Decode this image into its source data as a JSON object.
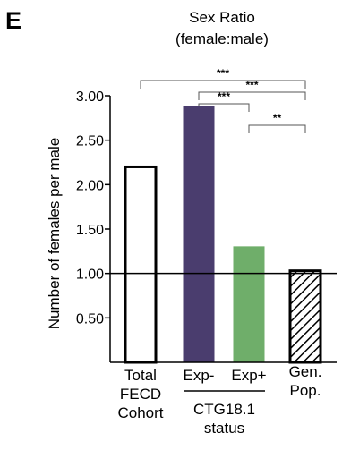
{
  "panel_label": "E",
  "chart_data": {
    "type": "bar",
    "title": "Sex Ratio",
    "subtitle": "(female:male)",
    "ylabel": "Number of females per male",
    "xlabel": "",
    "ylim": [
      0,
      3.0
    ],
    "yticks": [
      "0.50",
      "1.00",
      "1.50",
      "2.00",
      "2.50",
      "3.00"
    ],
    "ytick_values": [
      0.5,
      1.0,
      1.5,
      2.0,
      2.5,
      3.0
    ],
    "reference_line": 1.0,
    "categories": [
      {
        "lines": [
          "Total",
          "FECD",
          "Cohort"
        ]
      },
      {
        "lines": [
          "Exp-"
        ]
      },
      {
        "lines": [
          "Exp+"
        ]
      },
      {
        "lines": [
          "Gen.",
          "Pop."
        ]
      }
    ],
    "group_label": {
      "lines": [
        "CTG18.1",
        "status"
      ],
      "spans": [
        1,
        2
      ]
    },
    "values": [
      2.2,
      2.88,
      1.3,
      1.03
    ],
    "bar_styles": [
      {
        "fill": "#ffffff",
        "stroke": "#000000",
        "pattern": "none"
      },
      {
        "fill": "#4a3d6e",
        "stroke": "#4a3d6e",
        "pattern": "none"
      },
      {
        "fill": "#6fae6a",
        "stroke": "#6fae6a",
        "pattern": "none"
      },
      {
        "fill": "#ffffff",
        "stroke": "#000000",
        "pattern": "hatch"
      }
    ],
    "significance": [
      {
        "from": 0,
        "to": 3,
        "label": "***"
      },
      {
        "from": 1,
        "to": 3,
        "label": "***"
      },
      {
        "from": 1,
        "to": 2,
        "label": "***"
      },
      {
        "from": 2,
        "to": 3,
        "label": "**"
      }
    ],
    "grid": false,
    "legend": "none"
  }
}
